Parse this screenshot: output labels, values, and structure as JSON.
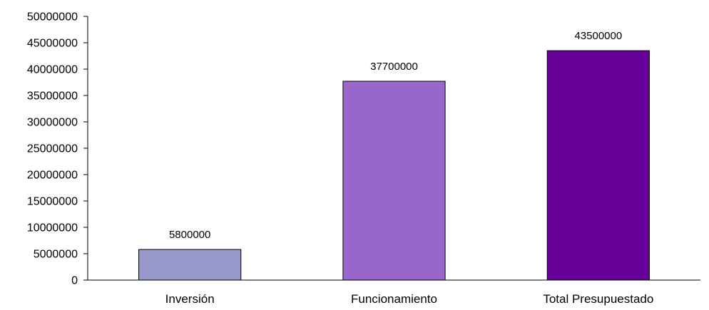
{
  "chart_data": {
    "type": "bar",
    "title": "",
    "xlabel": "",
    "ylabel": "",
    "categories": [
      "Inversión",
      "Funcionamiento",
      "Total Presupuestado"
    ],
    "values": [
      5800000,
      37700000,
      43500000
    ],
    "data_labels": [
      "5800000",
      "37700000",
      "43500000"
    ],
    "bar_colors": [
      "#9999cc",
      "#9966cc",
      "#660099"
    ],
    "ylim": [
      0,
      50000000
    ],
    "yticks": [
      0,
      5000000,
      10000000,
      15000000,
      20000000,
      25000000,
      30000000,
      35000000,
      40000000,
      45000000,
      50000000
    ],
    "ytick_labels": [
      "0",
      "5000000",
      "10000000",
      "15000000",
      "20000000",
      "25000000",
      "30000000",
      "35000000",
      "40000000",
      "45000000",
      "50000000"
    ],
    "grid": false,
    "legend": "none"
  }
}
